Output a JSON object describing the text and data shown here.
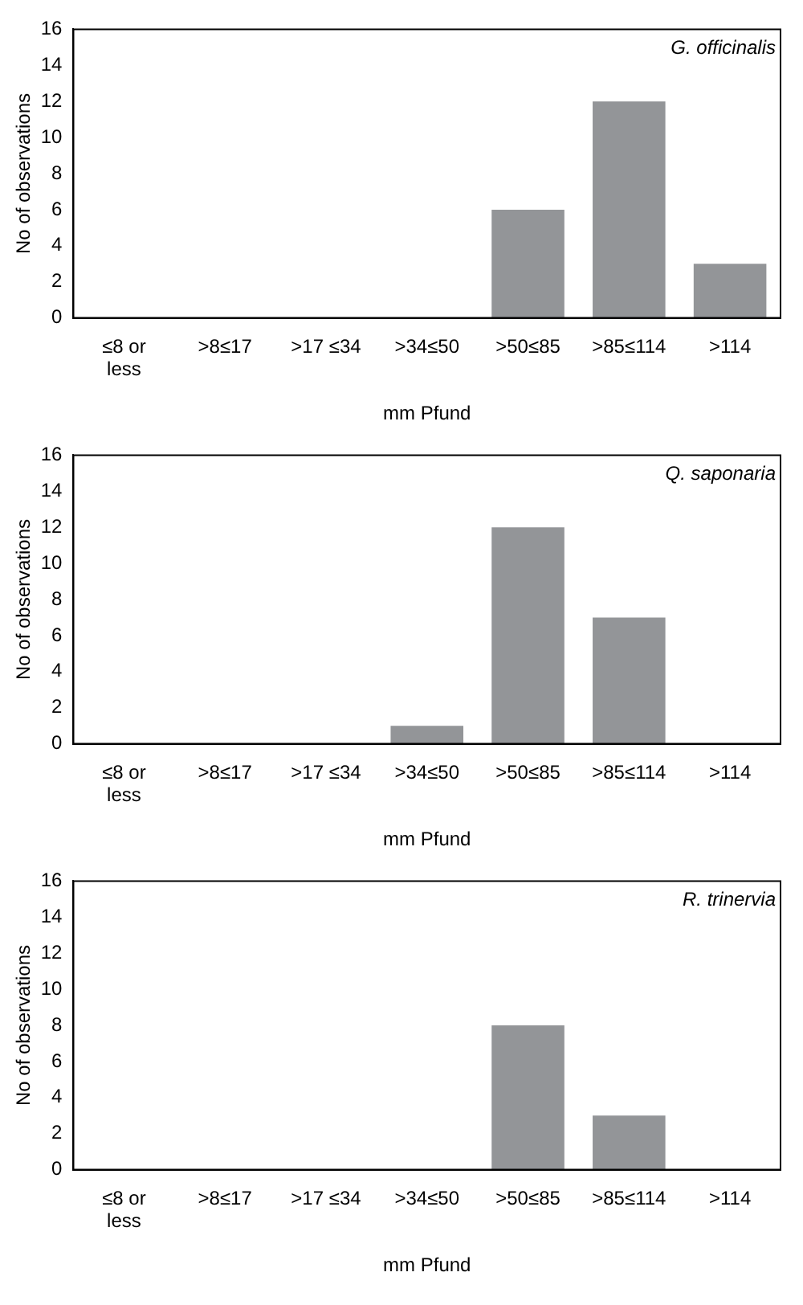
{
  "chart_data": [
    {
      "type": "bar",
      "categories": [
        "≤8 or less",
        ">8≤17",
        ">17 ≤34",
        ">34≤50",
        ">50≤85",
        ">85≤114",
        ">114"
      ],
      "values": [
        0,
        0,
        0,
        0,
        6,
        12,
        3
      ],
      "color": "#939598",
      "xlabel": "mm Pfund",
      "ylabel": "No of observations",
      "ylim": [
        0,
        16
      ],
      "yticks": [
        0,
        2,
        4,
        6,
        8,
        10,
        12,
        14,
        16
      ],
      "annotations": [
        "G. officinalis"
      ],
      "grid": false,
      "legend": false
    },
    {
      "type": "bar",
      "categories": [
        "≤8 or less",
        ">8≤17",
        ">17 ≤34",
        ">34≤50",
        ">50≤85",
        ">85≤114",
        ">114"
      ],
      "values": [
        0,
        0,
        0,
        1,
        12,
        7,
        0
      ],
      "color": "#939598",
      "xlabel": "mm Pfund",
      "ylabel": "No of observations",
      "ylim": [
        0,
        16
      ],
      "yticks": [
        0,
        2,
        4,
        6,
        8,
        10,
        12,
        14,
        16
      ],
      "annotations": [
        "Q. saponaria"
      ],
      "grid": false,
      "legend": false
    },
    {
      "type": "bar",
      "categories": [
        "≤8 or less",
        ">8≤17",
        ">17 ≤34",
        ">34≤50",
        ">50≤85",
        ">85≤114",
        ">114"
      ],
      "values": [
        0,
        0,
        0,
        0,
        8,
        3,
        0
      ],
      "color": "#939598",
      "xlabel": "mm Pfund",
      "ylabel": "No of observations",
      "ylim": [
        0,
        16
      ],
      "yticks": [
        0,
        2,
        4,
        6,
        8,
        10,
        12,
        14,
        16
      ],
      "annotations": [
        "R. trinervia"
      ],
      "grid": false,
      "legend": false
    }
  ]
}
